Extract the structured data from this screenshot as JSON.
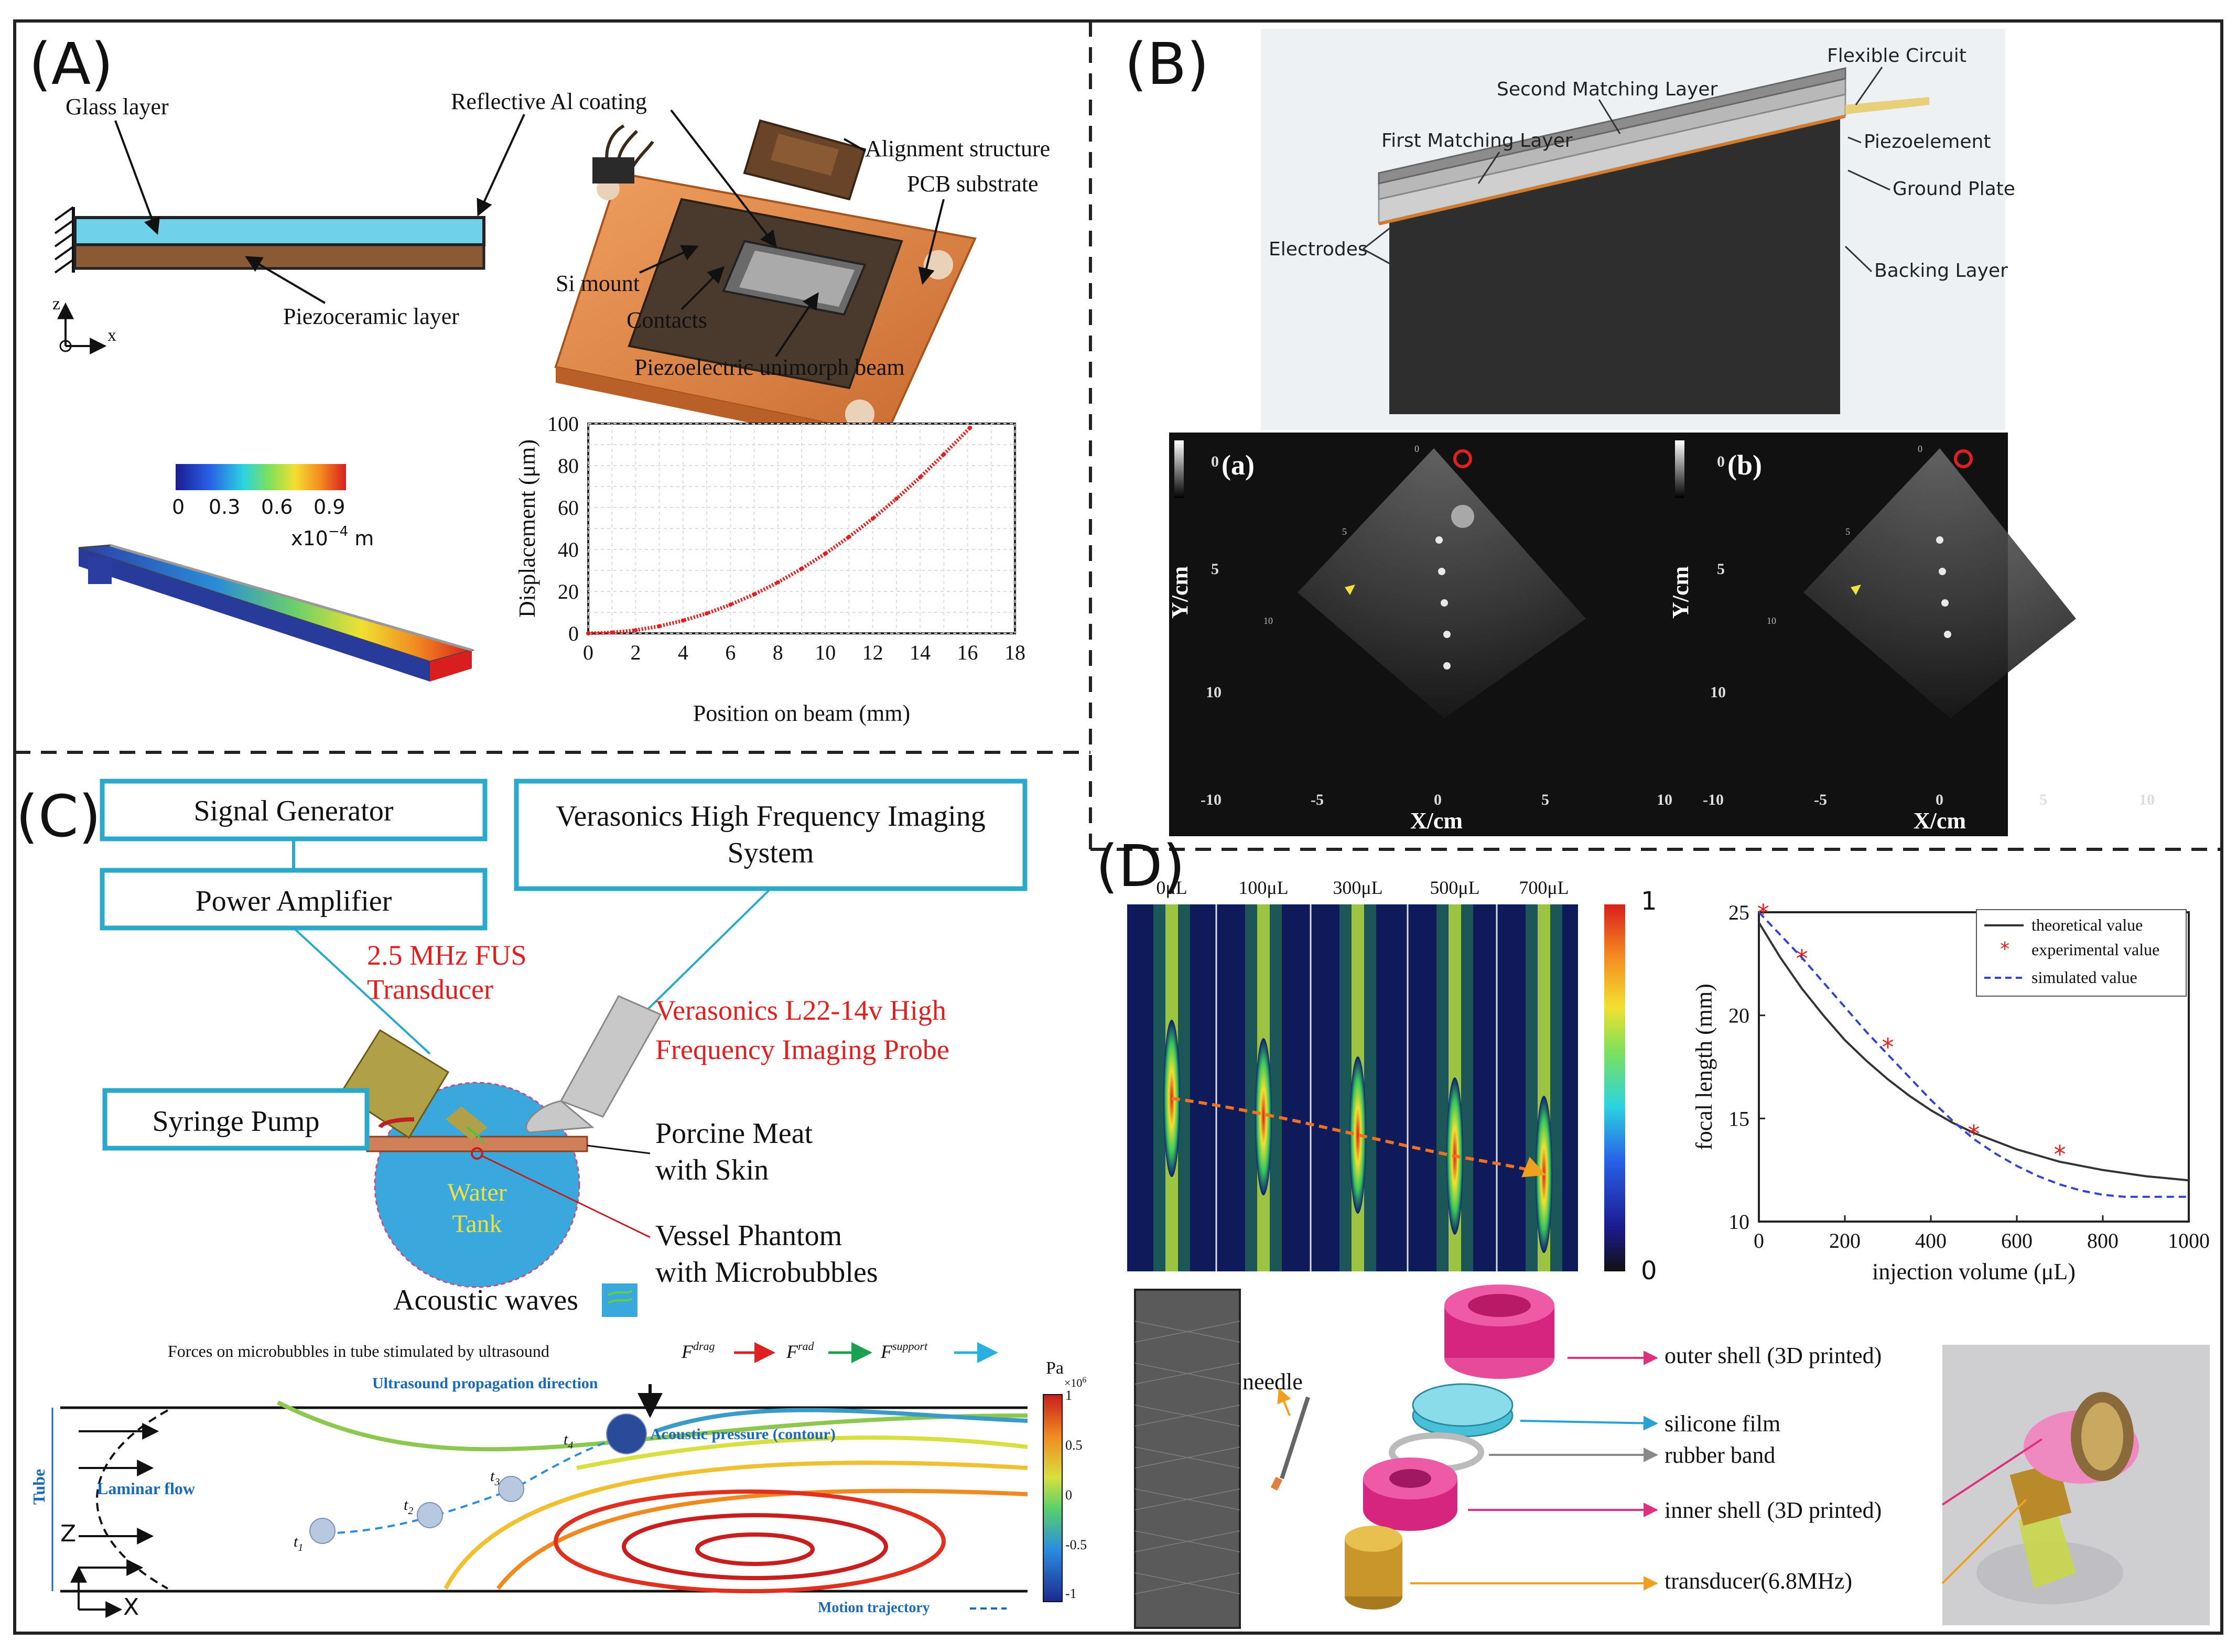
{
  "panels": {
    "A": {
      "tag": "(A)",
      "glass": "Glass layer",
      "reflective": "Reflective Al coating",
      "piezoceramic": "Piezoceramic layer",
      "axis_z": "z",
      "axis_x": "x",
      "alignment": "Alignment structure",
      "pcb": "PCB substrate",
      "si_mount": "Si mount",
      "contacts": "Contacts",
      "unimorph": "Piezoelectric unimorph beam",
      "scale_unit": "x10",
      "scale_exp": "−4",
      "scale_unit2": " m"
    },
    "B": {
      "tag": "(B)",
      "second_matching": "Second Matching Layer",
      "flexible": "Flexible Circuit",
      "first_matching": "First Matching Layer",
      "piezoelement": "Piezoelement",
      "ground_plate": "Ground Plate",
      "electrodes": "Electrodes",
      "backing": "Backing Layer",
      "img_a": "(a)",
      "img_b": "(b)",
      "ylabel": "Y/cm",
      "xlabel": "X/cm",
      "depth_ticks": [
        "0",
        "5",
        "10"
      ],
      "lateral_ticks": [
        "-10",
        "-5",
        "0",
        "5",
        "10"
      ],
      "probe_ticks": [
        "0",
        "5",
        "10"
      ]
    },
    "C": {
      "tag": "(C)",
      "signal_gen": "Signal Generator",
      "power_amp": "Power Amplifier",
      "verasonics_sys_1": "Verasonics High Frequency Imaging",
      "verasonics_sys_2": "System",
      "fus_1": "2.5 MHz FUS",
      "fus_2": "Transducer",
      "probe_1": "Verasonics L22-14v High",
      "probe_2": "Frequency Imaging Probe",
      "syringe": "Syringe Pump",
      "meat_1": "Porcine Meat",
      "meat_2": "with Skin",
      "water_1": "Water",
      "water_2": "Tank",
      "vessel_1": "Vessel Phantom",
      "vessel_2": "with Microbubbles",
      "acoustic_waves": "Acoustic waves",
      "forces_title": "Forces on microbubbles in tube stimulated by ultrasound",
      "f_drag_base": "F",
      "f_drag_sup": "drag",
      "f_rad_base": "F",
      "f_rad_sup": "rad",
      "f_support_base": "F",
      "f_support_sup": "support",
      "propagation": "Ultrasound propagation direction",
      "acoustic_pressure": "Acoustic pressure (contour)",
      "laminar": "Laminar flow",
      "tube": "Tube",
      "motion": "Motion trajectory",
      "pa": "Pa",
      "pa_scale": "×10",
      "pa_exp": "6",
      "cbar_ticks": [
        "1",
        "0.5",
        "0",
        "-0.5",
        "-1"
      ],
      "t_labels": [
        "t",
        "t",
        "t",
        "t"
      ],
      "t_subs": [
        "1",
        "2",
        "3",
        "4"
      ],
      "axis_z": "Z",
      "axis_x": "X"
    },
    "D": {
      "tag": "(D)",
      "volumes": [
        "0μL",
        "100μL",
        "300μL",
        "500μL",
        "700μL"
      ],
      "cbar_max": "1",
      "cbar_min": "0",
      "needle": "needle",
      "outer_shell": "outer shell (3D printed)",
      "silicone": "silicone film",
      "rubber": "rubber band",
      "inner_shell": "inner shell (3D printed)",
      "transducer": "transducer(6.8MHz)"
    }
  },
  "chart_data": [
    {
      "id": "displacement",
      "type": "line",
      "title": "",
      "xlabel": "Position on beam (mm)",
      "ylabel": "Displacement (μm)",
      "xlim": [
        0,
        18
      ],
      "ylim": [
        0,
        100
      ],
      "x_ticks": [
        0,
        2,
        4,
        6,
        8,
        10,
        12,
        14,
        16,
        18
      ],
      "y_ticks": [
        0,
        20,
        40,
        60,
        80,
        100
      ],
      "grid": true,
      "series": [
        {
          "name": "displacement",
          "color": "#e02020",
          "x": [
            0,
            1,
            2,
            3,
            4,
            5,
            6,
            7,
            8,
            9,
            10,
            11,
            12,
            13,
            14,
            15,
            16.1
          ],
          "y": [
            0,
            0.4,
            1.5,
            3.4,
            6.1,
            9.5,
            13.7,
            18.6,
            24.3,
            30.8,
            38.0,
            46.0,
            54.7,
            64.2,
            74.4,
            85.4,
            98
          ]
        }
      ]
    },
    {
      "id": "focal",
      "type": "line",
      "title": "",
      "xlabel": "injection volume (μL)",
      "ylabel": "focal length (mm)",
      "xlim": [
        0,
        1000
      ],
      "ylim": [
        10,
        25
      ],
      "x_ticks": [
        0,
        200,
        400,
        600,
        800,
        1000
      ],
      "y_ticks": [
        10,
        15,
        20,
        25
      ],
      "legend": "top-right",
      "series": [
        {
          "name": "theoretical value",
          "style": "solid",
          "color": "#333333",
          "x": [
            0,
            50,
            100,
            150,
            200,
            250,
            300,
            350,
            400,
            450,
            500,
            550,
            600,
            650,
            700,
            750,
            800,
            850,
            900,
            950,
            1000
          ],
          "y": [
            24.5,
            22.8,
            21.3,
            20.0,
            18.8,
            17.8,
            16.9,
            16.1,
            15.4,
            14.8,
            14.3,
            13.9,
            13.5,
            13.2,
            12.9,
            12.7,
            12.5,
            12.35,
            12.2,
            12.1,
            12.0
          ]
        },
        {
          "name": "experimental value",
          "style": "marker",
          "color": "#e02020",
          "x": [
            10,
            100,
            300,
            500,
            700
          ],
          "y": [
            25.0,
            22.8,
            18.5,
            14.3,
            13.3
          ]
        },
        {
          "name": "simulated value",
          "style": "dashed",
          "color": "#3344cc",
          "x": [
            0,
            50,
            100,
            150,
            200,
            250,
            300,
            350,
            400,
            450,
            500,
            550,
            600,
            650,
            700,
            750,
            800,
            850,
            900,
            950,
            1000
          ],
          "y": [
            25.0,
            23.9,
            22.8,
            21.6,
            20.4,
            19.2,
            18.1,
            17.0,
            15.9,
            14.9,
            14.0,
            13.3,
            12.7,
            12.2,
            11.8,
            11.5,
            11.3,
            11.2,
            11.2,
            11.2,
            11.2
          ]
        }
      ]
    }
  ]
}
